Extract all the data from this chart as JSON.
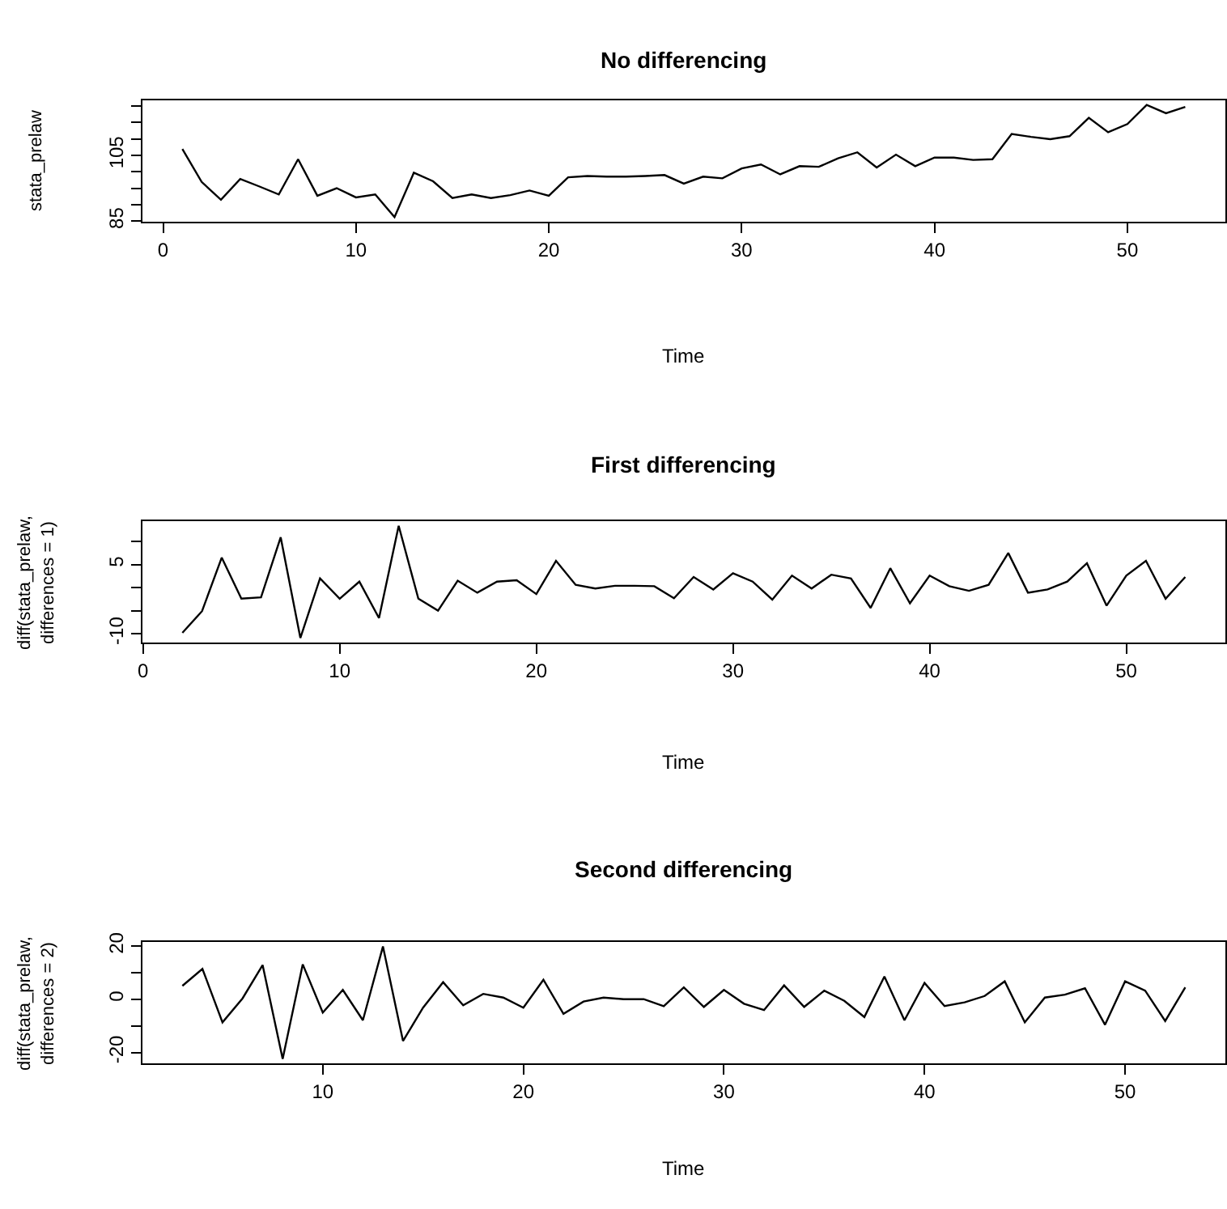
{
  "chart_data": [
    {
      "type": "line",
      "title": "No differencing",
      "xlabel": "Time",
      "ylabel": "stata_prelaw",
      "x": [
        1,
        2,
        3,
        4,
        5,
        6,
        7,
        8,
        9,
        10,
        11,
        12,
        13,
        14,
        15,
        16,
        17,
        18,
        19,
        20,
        21,
        22,
        23,
        24,
        25,
        26,
        27,
        28,
        29,
        30,
        31,
        32,
        33,
        34,
        35,
        36,
        37,
        38,
        39,
        40,
        41,
        42,
        43,
        44,
        45,
        46,
        47,
        48,
        49,
        50,
        51,
        52,
        53
      ],
      "series": [
        {
          "color": "#000000",
          "values": [
            106.9,
            96.9,
            91.5,
            97.8,
            95.5,
            93.1,
            103.8,
            92.7,
            95,
            92.2,
            93.1,
            86.2,
            99.7,
            97.1,
            92,
            93.1,
            92,
            92.9,
            94.3,
            92.7,
            98.3,
            98.7,
            98.5,
            98.5,
            98.7,
            99,
            96.4,
            98.5,
            98,
            101,
            102.2,
            99.2,
            101.7,
            101.5,
            104.1,
            105.9,
            101.3,
            105.2,
            101.7,
            104.3,
            104.3,
            103.6,
            103.8,
            111.5,
            110.6,
            109.9,
            110.8,
            116.4,
            112,
            114.5,
            120.3,
            117.8,
            119.7
          ]
        }
      ],
      "xlim": [
        -1.08,
        55.08
      ],
      "ylim": [
        84.8,
        121.7
      ],
      "xticks": [
        0,
        10,
        20,
        30,
        40,
        50
      ],
      "yticks": [
        85,
        {
          "value": 90,
          "label": null
        },
        {
          "value": 95,
          "label": null
        },
        {
          "value": 100,
          "label": null
        },
        105,
        {
          "value": 110,
          "label": null
        },
        {
          "value": 115,
          "label": null
        },
        {
          "value": 120,
          "label": null
        }
      ]
    },
    {
      "type": "line",
      "title": "First differencing",
      "xlabel": "Time",
      "ylabel": "diff(stata_prelaw, differences = 1)",
      "x": [
        2,
        3,
        4,
        5,
        6,
        7,
        8,
        9,
        10,
        11,
        12,
        13,
        14,
        15,
        16,
        17,
        18,
        19,
        20,
        21,
        22,
        23,
        24,
        25,
        26,
        27,
        28,
        29,
        30,
        31,
        32,
        33,
        34,
        35,
        36,
        37,
        38,
        39,
        40,
        41,
        42,
        43,
        44,
        45,
        46,
        47,
        48,
        49,
        50,
        51,
        52,
        53
      ],
      "series": [
        {
          "color": "#000000",
          "values": [
            -9.8,
            -5.1,
            6.5,
            -2.4,
            -2.1,
            10.9,
            -10.9,
            2,
            -2.4,
            1.3,
            -6.6,
            13.4,
            -2.4,
            -5,
            1.5,
            -1.1,
            1.3,
            1.6,
            -1.4,
            5.8,
            0.6,
            -0.2,
            0.4,
            0.4,
            0.3,
            -2.3,
            2.3,
            -0.4,
            3.1,
            1.3,
            -2.6,
            2.6,
            -0.2,
            2.8,
            2,
            -4.4,
            4.2,
            -3.4,
            2.6,
            0.3,
            -0.7,
            0.6,
            7.5,
            -1.1,
            -0.4,
            1.3,
            5.3,
            -3.9,
            2.6,
            5.8,
            -2.4,
            2.3
          ]
        }
      ],
      "xlim": [
        -0.04,
        55.04
      ],
      "ylim": [
        -11.9,
        14.4
      ],
      "xticks": [
        0,
        10,
        20,
        30,
        40,
        50
      ],
      "yticks": [
        -10,
        {
          "value": -5,
          "label": null
        },
        {
          "value": 0,
          "label": null
        },
        5,
        {
          "value": 10,
          "label": null
        }
      ]
    },
    {
      "type": "line",
      "title": "Second differencing",
      "xlabel": "Time",
      "ylabel": "diff(stata_prelaw, differences = 2)",
      "x": [
        3,
        4,
        5,
        6,
        7,
        8,
        9,
        10,
        11,
        12,
        13,
        14,
        15,
        16,
        17,
        18,
        19,
        20,
        21,
        22,
        23,
        24,
        25,
        26,
        27,
        28,
        29,
        30,
        31,
        32,
        33,
        34,
        35,
        36,
        37,
        38,
        39,
        40,
        41,
        42,
        43,
        44,
        45,
        46,
        47,
        48,
        49,
        50,
        51,
        52,
        53
      ],
      "series": [
        {
          "color": "#000000",
          "values": [
            5,
            11.4,
            -8.7,
            0.3,
            12.8,
            -22.4,
            13.1,
            -5,
            3.5,
            -7.9,
            19.8,
            -15.7,
            -3.2,
            6.4,
            -2.3,
            2,
            0.6,
            -3.2,
            7.3,
            -5.5,
            -0.9,
            0.6,
            0,
            0,
            -2.6,
            4.4,
            -2.9,
            3.5,
            -1.7,
            -4.1,
            5.2,
            -2.9,
            3.2,
            -0.6,
            -6.7,
            8.5,
            -7.9,
            6.1,
            -2.6,
            -1.2,
            1.2,
            6.7,
            -8.7,
            0.6,
            1.7,
            4.1,
            -9.6,
            6.7,
            3.2,
            -8.2,
            4.4
          ]
        }
      ],
      "xlim": [
        1,
        55
      ],
      "ylim": [
        -24.1,
        21.5
      ],
      "xticks": [
        10,
        20,
        30,
        40,
        50
      ],
      "yticks": [
        -20,
        {
          "value": -10,
          "label": null
        },
        0,
        {
          "value": 10,
          "label": null
        },
        20
      ]
    }
  ]
}
